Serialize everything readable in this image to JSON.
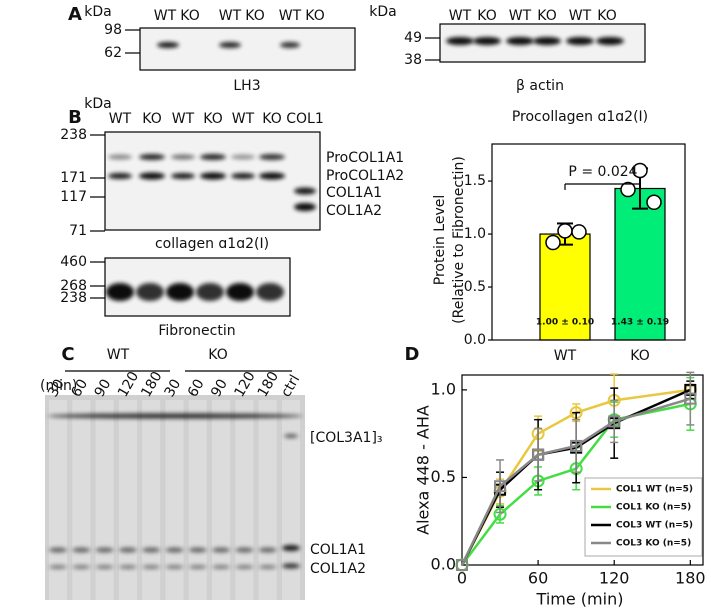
{
  "figure": {
    "panel_labels": [
      "A",
      "B",
      "C",
      "D"
    ],
    "blot_lh3": {
      "unit": "kDa",
      "markers": [
        "98",
        "62"
      ],
      "lanes": [
        "WT",
        "KO",
        "WT",
        "KO",
        "WT",
        "KO"
      ],
      "caption": "LH3"
    },
    "blot_actin": {
      "unit": "kDa",
      "markers": [
        "49",
        "38"
      ],
      "lanes": [
        "WT",
        "KO",
        "WT",
        "KO",
        "WT",
        "KO"
      ],
      "caption": "β actin"
    },
    "blot_collagen": {
      "unit": "kDa",
      "markers": [
        "238",
        "171",
        "117",
        "71"
      ],
      "lanes": [
        "WT",
        "KO",
        "WT",
        "KO",
        "WT",
        "KO",
        "COL1"
      ],
      "band_labels": [
        "ProCOL1A1",
        "ProCOL1A2",
        "COL1A1",
        "COL1A2"
      ],
      "caption": "collagen ɑ1ɑ2(I)"
    },
    "blot_fibronectin": {
      "markers": [
        "460",
        "268",
        "238"
      ],
      "caption": "Fibronectin"
    },
    "gel": {
      "groups": [
        "WT",
        "KO"
      ],
      "unit": "(min)",
      "lanes": [
        "30",
        "60",
        "90",
        "120",
        "180",
        "30",
        "60",
        "90",
        "120",
        "180",
        "ctrl"
      ],
      "band_labels": [
        "[COL3A1]₃",
        "COL1A1",
        "COL1A2"
      ]
    }
  },
  "chart_data": [
    {
      "type": "bar",
      "title": "Procollagen ɑ1ɑ2(I)",
      "ylabel": [
        "Protein Level",
        "(Relative to Fibronectin)"
      ],
      "categories": [
        "WT",
        "KO"
      ],
      "values": [
        1.0,
        1.43
      ],
      "errors": [
        0.1,
        0.19
      ],
      "value_labels": [
        "1.00 ± 0.10",
        "1.43 ± 0.19"
      ],
      "colors": [
        "#ffff00",
        "#00ee77"
      ],
      "points": [
        [
          0.92,
          1.03,
          1.02
        ],
        [
          1.42,
          1.6,
          1.3
        ]
      ],
      "annotation": "P = 0.024",
      "ylim": [
        0,
        1.85
      ],
      "yticks": [
        {
          "value": 0,
          "label": "0.0"
        },
        {
          "value": 0.5,
          "label": "0.5"
        },
        {
          "value": 1,
          "label": "1.0"
        },
        {
          "value": 1.5,
          "label": "1.5"
        }
      ]
    },
    {
      "type": "line",
      "xlabel": "Time (min)",
      "ylabel": "Alexa 448 - AHA",
      "x": [
        0,
        30,
        60,
        90,
        120,
        180
      ],
      "xlim": [
        0,
        190
      ],
      "xticks": [
        0,
        60,
        120,
        180
      ],
      "ylim": [
        0,
        1.085
      ],
      "yticks": [
        {
          "value": 0,
          "label": "0.0"
        },
        {
          "value": 0.5,
          "label": "0.5"
        },
        {
          "value": 1,
          "label": "1.0"
        }
      ],
      "legend": "lower right",
      "series": [
        {
          "name": "COL1 WT (n=5)",
          "color": "#e8c840",
          "marker": "circle",
          "values": [
            0,
            0.42,
            0.75,
            0.87,
            0.94,
            1.0
          ],
          "errors": [
            null,
            0.07,
            0.1,
            0.05,
            0.15,
            0.02
          ]
        },
        {
          "name": "COL1 KO (n=5)",
          "color": "#44dd44",
          "marker": "circle",
          "values": [
            0,
            0.29,
            0.48,
            0.55,
            0.83,
            0.92
          ],
          "errors": [
            null,
            0.05,
            0.08,
            0.12,
            0.1,
            0.15
          ]
        },
        {
          "name": "COL3 WT (n=5)",
          "color": "#000000",
          "marker": "square",
          "values": [
            0,
            0.43,
            0.63,
            0.67,
            0.81,
            1.0
          ],
          "errors": [
            null,
            0.1,
            0.2,
            0.2,
            0.2,
            0.05
          ]
        },
        {
          "name": "COL3 KO (n=5)",
          "color": "#888888",
          "marker": "square",
          "values": [
            0,
            0.45,
            0.63,
            0.68,
            0.82,
            0.95
          ],
          "errors": [
            null,
            0.15,
            0.15,
            0.15,
            0.12,
            0.15
          ]
        }
      ]
    }
  ]
}
